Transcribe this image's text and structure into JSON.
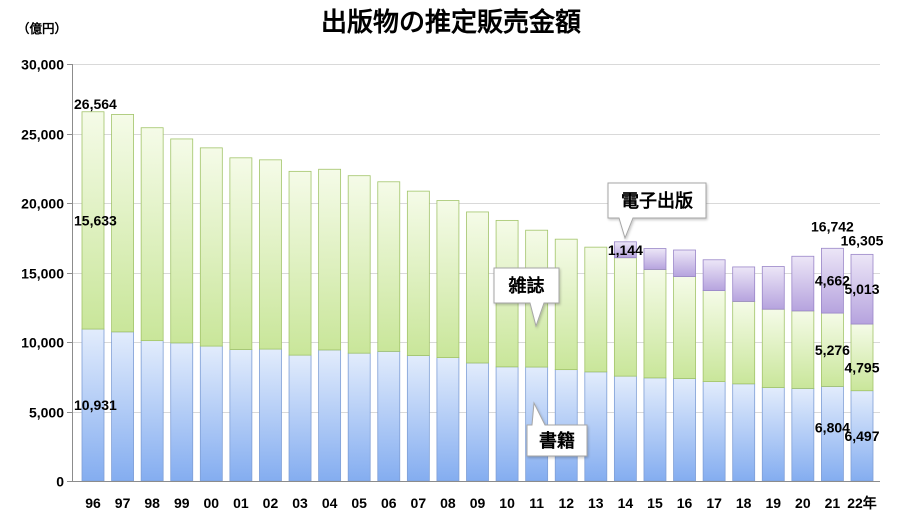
{
  "chart_data": {
    "type": "bar",
    "stacked": true,
    "title": "出版物の推定販売金額",
    "ylabel": "（億円）",
    "ylim": [
      0,
      30000
    ],
    "yticks": [
      0,
      5000,
      10000,
      15000,
      20000,
      25000,
      30000
    ],
    "ytick_labels": [
      "0",
      "5,000",
      "10,000",
      "15,000",
      "20,000",
      "25,000",
      "30,000"
    ],
    "grid": true,
    "categories": [
      "96",
      "97",
      "98",
      "99",
      "00",
      "01",
      "02",
      "03",
      "04",
      "05",
      "06",
      "07",
      "08",
      "09",
      "10",
      "11",
      "12",
      "13",
      "14",
      "15",
      "16",
      "17",
      "18",
      "19",
      "20",
      "21",
      "22年"
    ],
    "series": [
      {
        "name": "書籍",
        "values": [
          10931,
          10730,
          10100,
          9936,
          9706,
          9456,
          9490,
          9056,
          9429,
          9197,
          9326,
          9026,
          8878,
          8492,
          8213,
          8199,
          8013,
          7851,
          7544,
          7419,
          7370,
          7152,
          6991,
          6723,
          6661,
          6804,
          6497
        ],
        "labels": {
          "0": "10,931",
          "25": "6,804",
          "26": "6,497"
        },
        "color_light": "#e2ecfc",
        "color_dark": "#84adf0",
        "stroke": "#7f9fd6"
      },
      {
        "name": "雑誌",
        "values": [
          15633,
          15644,
          15315,
          14672,
          14261,
          13794,
          13616,
          13222,
          12998,
          12767,
          12200,
          11827,
          11299,
          10864,
          10536,
          9844,
          9385,
          8972,
          8520,
          7801,
          7339,
          6548,
          5930,
          5637,
          5576,
          5276,
          4795
        ],
        "labels": {
          "0": "15,633",
          "25": "5,276",
          "26": "4,795"
        },
        "color_light": "#f5fbe8",
        "color_dark": "#c9e69a",
        "stroke": "#a2c46a"
      },
      {
        "name": "電子出版",
        "values": [
          null,
          null,
          null,
          null,
          null,
          null,
          null,
          null,
          null,
          null,
          null,
          null,
          null,
          null,
          null,
          null,
          null,
          null,
          1144,
          1502,
          1909,
          2215,
          2479,
          3072,
          3931,
          4662,
          5013
        ],
        "labels": {
          "18": "1,144",
          "25": "4,662",
          "26": "5,013"
        },
        "color_light": "#ece6f7",
        "color_dark": "#b6a3de",
        "stroke": "#9a86c8"
      }
    ],
    "total_labels": {
      "0": "26,564",
      "25": "16,742",
      "26": "16,305"
    }
  }
}
